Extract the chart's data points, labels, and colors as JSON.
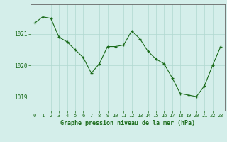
{
  "x": [
    0,
    1,
    2,
    3,
    4,
    5,
    6,
    7,
    8,
    9,
    10,
    11,
    12,
    13,
    14,
    15,
    16,
    17,
    18,
    19,
    20,
    21,
    22,
    23
  ],
  "y": [
    1021.35,
    1021.55,
    1021.5,
    1020.9,
    1020.75,
    1020.5,
    1020.25,
    1019.75,
    1020.05,
    1020.6,
    1020.6,
    1020.65,
    1021.1,
    1020.85,
    1020.45,
    1020.2,
    1020.05,
    1019.6,
    1019.1,
    1019.05,
    1019.0,
    1019.35,
    1020.0,
    1020.6
  ],
  "ylim": [
    1018.55,
    1021.95
  ],
  "yticks": [
    1019,
    1020,
    1021
  ],
  "xticks": [
    0,
    1,
    2,
    3,
    4,
    5,
    6,
    7,
    8,
    9,
    10,
    11,
    12,
    13,
    14,
    15,
    16,
    17,
    18,
    19,
    20,
    21,
    22,
    23
  ],
  "line_color": "#1a6b1a",
  "marker_color": "#1a6b1a",
  "bg_color": "#d4eeea",
  "grid_color": "#b0d8d0",
  "xlabel": "Graphe pression niveau de la mer (hPa)",
  "xlabel_color": "#1a6b1a",
  "tick_color": "#1a6b1a",
  "spine_color": "#666666"
}
